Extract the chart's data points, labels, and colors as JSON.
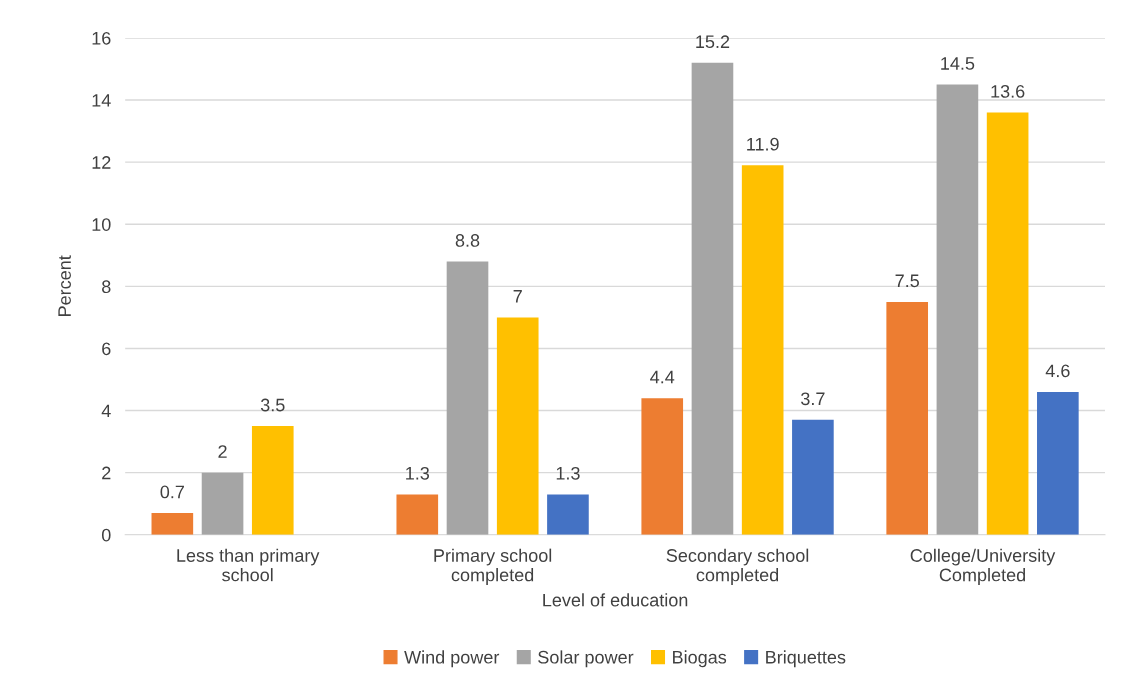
{
  "chart_data": {
    "type": "bar",
    "xlabel": "Level of education",
    "ylabel": "Percent",
    "categories": [
      "Less than primary\nschool",
      "Primary school\ncompleted",
      "Secondary school\ncompleted",
      "College/University\nCompleted"
    ],
    "series": [
      {
        "name": "Wind power",
        "color": "#ed7d31",
        "values": [
          0.7,
          1.3,
          4.4,
          7.5
        ]
      },
      {
        "name": "Solar power",
        "color": "#a5a5a5",
        "values": [
          2,
          8.8,
          15.2,
          14.5
        ]
      },
      {
        "name": "Biogas",
        "color": "#ffc000",
        "values": [
          3.5,
          7,
          11.9,
          13.6
        ]
      },
      {
        "name": "Briquettes",
        "color": "#4472c4",
        "values": [
          null,
          1.3,
          3.7,
          4.6
        ]
      }
    ],
    "ylim": [
      0,
      16
    ],
    "yticks": [
      0,
      2,
      4,
      6,
      8,
      10,
      12,
      14,
      16
    ],
    "grid": "y",
    "legend": "bottom",
    "data_labels": true
  }
}
